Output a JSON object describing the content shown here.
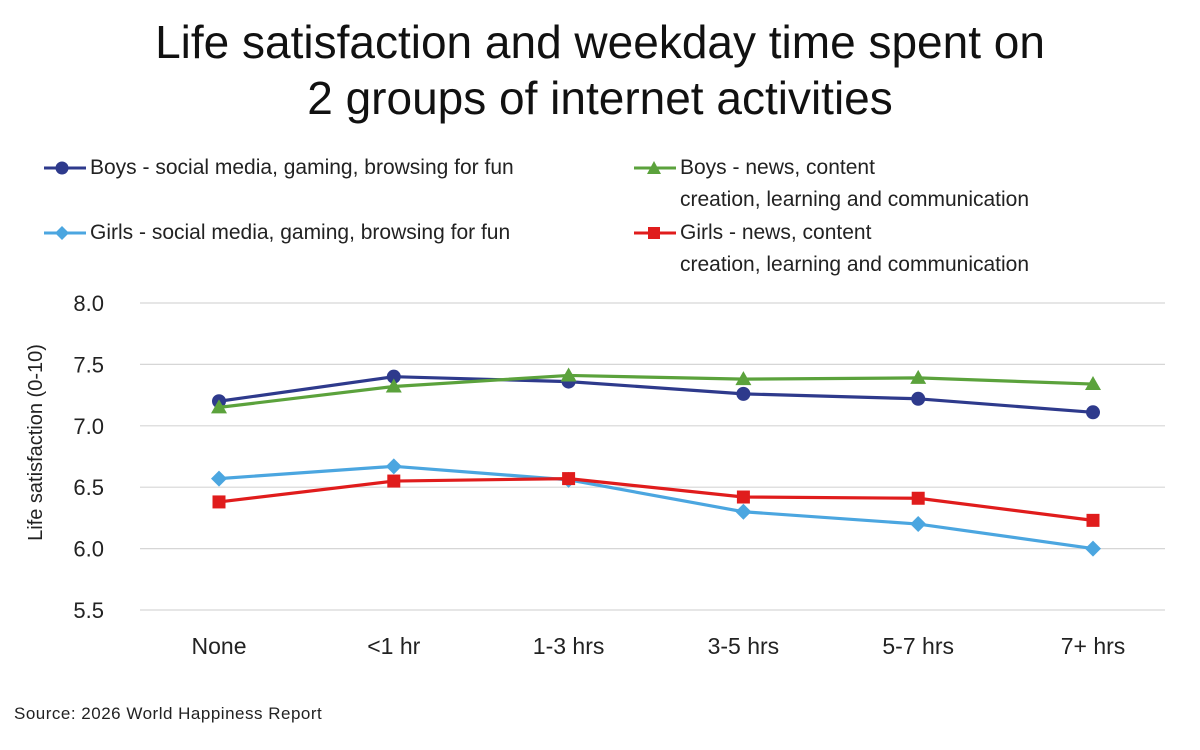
{
  "chart_data": {
    "type": "line",
    "title_lines": [
      "Life satisfaction and weekday time spent on",
      "2 groups of internet activities"
    ],
    "ylabel": "Life satisfaction (0-10)",
    "xlabel": "",
    "categories": [
      "None",
      "<1 hr",
      "1-3 hrs",
      "3-5 hrs",
      "5-7 hrs",
      "7+ hrs"
    ],
    "ylim": [
      5.5,
      8.0
    ],
    "yticks": [
      "8.0",
      "7.5",
      "7.0",
      "6.5",
      "6.0",
      "5.5"
    ],
    "ytick_values": [
      8.0,
      7.5,
      7.0,
      6.5,
      6.0,
      5.5
    ],
    "grid": true,
    "legend_position": "top",
    "series": [
      {
        "name": "Boys - social media, gaming, browsing for fun",
        "name_lines": [
          "Boys - social media, gaming, browsing for fun"
        ],
        "color": "#2E3A8C",
        "marker": "circle",
        "values": [
          7.2,
          7.4,
          7.36,
          7.26,
          7.22,
          7.11
        ]
      },
      {
        "name": "Boys - news, content creation, learning and communication",
        "name_lines": [
          "Boys - news, content",
          "creation, learning and communication"
        ],
        "color": "#5BA23C",
        "marker": "triangle",
        "values": [
          7.15,
          7.32,
          7.41,
          7.38,
          7.39,
          7.34
        ]
      },
      {
        "name": "Girls - social media, gaming, browsing for fun",
        "name_lines": [
          "Girls - social media, gaming, browsing for fun"
        ],
        "color": "#4BA6E0",
        "marker": "diamond",
        "values": [
          6.57,
          6.67,
          6.56,
          6.3,
          6.2,
          6.0
        ]
      },
      {
        "name": "Girls - news, content creation, learning and communication",
        "name_lines": [
          "Girls - news, content",
          "creation, learning and communication"
        ],
        "color": "#E01C1C",
        "marker": "square",
        "values": [
          6.38,
          6.55,
          6.57,
          6.42,
          6.41,
          6.23
        ]
      }
    ]
  },
  "source": "Source:  2026  World  Happiness  Report"
}
